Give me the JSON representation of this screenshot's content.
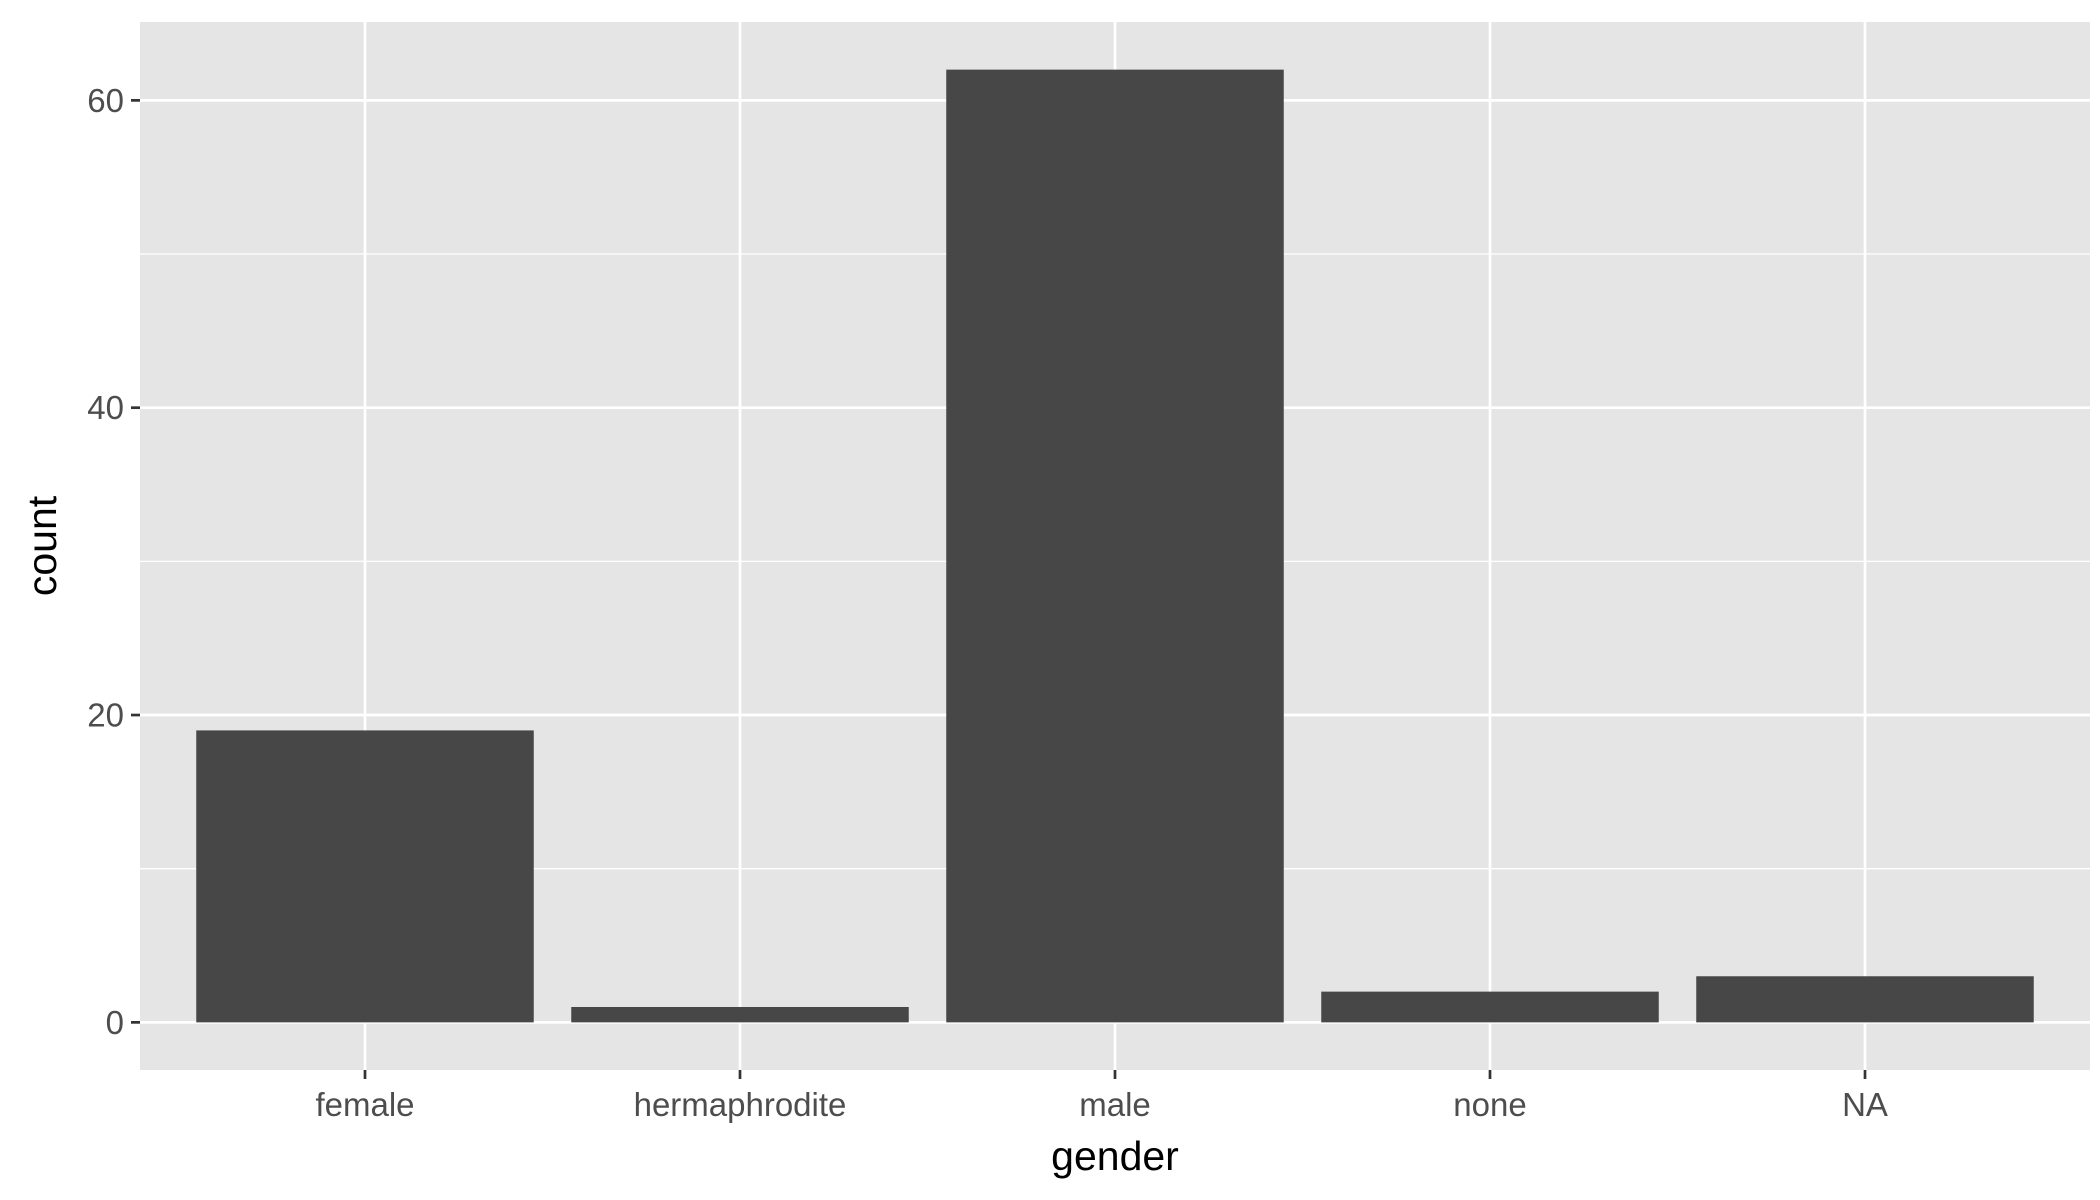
{
  "chart_data": {
    "type": "bar",
    "categories": [
      "female",
      "hermaphrodite",
      "male",
      "none",
      "NA"
    ],
    "values": [
      19,
      1,
      62,
      2,
      3
    ],
    "xlabel": "gender",
    "ylabel": "count",
    "ylim": [
      -3.1,
      65.1
    ],
    "yticks": [
      0,
      20,
      40,
      60
    ],
    "y_minor_ticks": [
      10,
      30,
      50
    ],
    "grid": true,
    "colors": {
      "panel": "#e5e5e5",
      "grid": "#ffffff",
      "bar": "#474747",
      "tick_text": "#4d4d4d",
      "tick_mark": "#333333",
      "title_text": "#000000"
    }
  }
}
